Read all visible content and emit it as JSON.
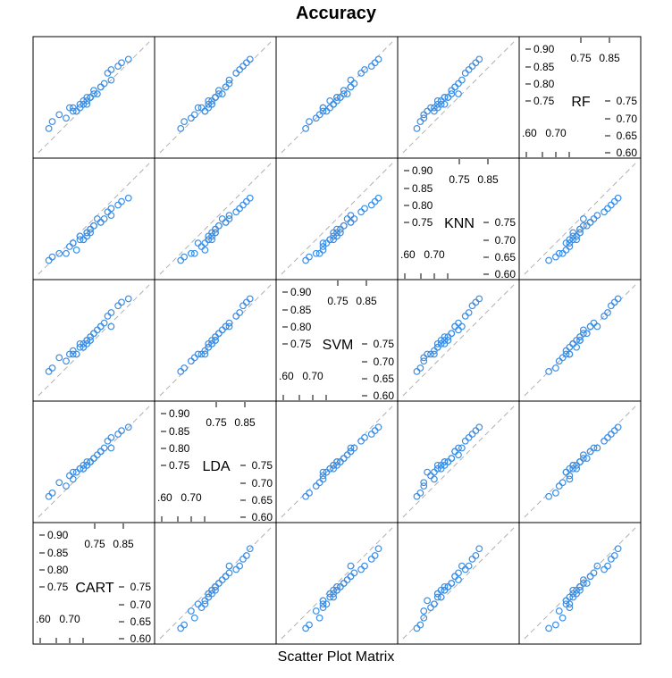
{
  "chart_data": {
    "type": "scatter",
    "title": "Accuracy",
    "xlabel": "Scatter Plot Matrix",
    "variables": [
      "CART",
      "LDA",
      "SVM",
      "KNN",
      "RF"
    ],
    "axis_range": [
      0.6,
      0.92
    ],
    "tick_labels_lower": [
      "0.60",
      "0.65",
      "0.70",
      "0.75"
    ],
    "tick_labels_upper": [
      "0.75",
      "0.80",
      "0.85",
      "0.90"
    ],
    "tick_labels_x_lower": [
      ".60",
      "0.70"
    ],
    "tick_labels_x_upper": [
      "0.75",
      "0.85"
    ],
    "reference_line": "y = x",
    "point_color": "#3a8ee6",
    "line_color": "#b0b0b0",
    "samples": {
      "CART": [
        0.78,
        0.81,
        0.75,
        0.86,
        0.73,
        0.74,
        0.7,
        0.68,
        0.75,
        0.79,
        0.72,
        0.63,
        0.76,
        0.71,
        0.78,
        0.8,
        0.74,
        0.77,
        0.64,
        0.83,
        0.73,
        0.75,
        0.84,
        0.69,
        0.76,
        0.81,
        0.66,
        0.74,
        0.7,
        0.72
      ],
      "LDA": [
        0.79,
        0.83,
        0.76,
        0.86,
        0.75,
        0.76,
        0.71,
        0.69,
        0.76,
        0.8,
        0.74,
        0.66,
        0.77,
        0.73,
        0.79,
        0.82,
        0.75,
        0.78,
        0.67,
        0.84,
        0.74,
        0.76,
        0.85,
        0.72,
        0.77,
        0.8,
        0.7,
        0.75,
        0.73,
        0.74
      ],
      "SVM": [
        0.8,
        0.84,
        0.77,
        0.88,
        0.75,
        0.76,
        0.72,
        0.7,
        0.76,
        0.81,
        0.74,
        0.67,
        0.78,
        0.72,
        0.8,
        0.83,
        0.75,
        0.79,
        0.68,
        0.86,
        0.74,
        0.77,
        0.87,
        0.72,
        0.78,
        0.8,
        0.71,
        0.76,
        0.73,
        0.75
      ],
      "KNN": [
        0.75,
        0.79,
        0.72,
        0.82,
        0.7,
        0.72,
        0.69,
        0.66,
        0.73,
        0.76,
        0.7,
        0.64,
        0.74,
        0.67,
        0.75,
        0.78,
        0.72,
        0.76,
        0.65,
        0.8,
        0.7,
        0.73,
        0.81,
        0.68,
        0.74,
        0.77,
        0.66,
        0.71,
        0.69,
        0.71
      ],
      "RF": [
        0.79,
        0.84,
        0.76,
        0.87,
        0.74,
        0.76,
        0.73,
        0.7,
        0.76,
        0.8,
        0.73,
        0.67,
        0.78,
        0.72,
        0.79,
        0.83,
        0.74,
        0.77,
        0.69,
        0.85,
        0.75,
        0.76,
        0.86,
        0.73,
        0.77,
        0.81,
        0.71,
        0.75,
        0.72,
        0.74
      ]
    }
  }
}
